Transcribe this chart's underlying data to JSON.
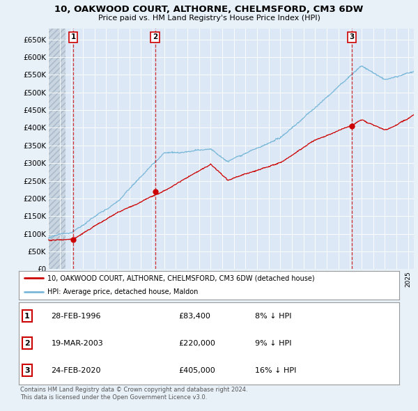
{
  "title1": "10, OAKWOOD COURT, ALTHORNE, CHELMSFORD, CM3 6DW",
  "title2": "Price paid vs. HM Land Registry's House Price Index (HPI)",
  "ylim": [
    0,
    680000
  ],
  "yticks": [
    0,
    50000,
    100000,
    150000,
    200000,
    250000,
    300000,
    350000,
    400000,
    450000,
    500000,
    550000,
    600000,
    650000
  ],
  "ytick_labels": [
    "£0",
    "£50K",
    "£100K",
    "£150K",
    "£200K",
    "£250K",
    "£300K",
    "£350K",
    "£400K",
    "£450K",
    "£500K",
    "£550K",
    "£600K",
    "£650K"
  ],
  "xlim_start": 1994.0,
  "xlim_end": 2025.5,
  "sale_dates": [
    1996.16,
    2003.22,
    2020.15
  ],
  "sale_prices": [
    83400,
    220000,
    405000
  ],
  "sale_labels": [
    "1",
    "2",
    "3"
  ],
  "sale_date_strs": [
    "28-FEB-1996",
    "19-MAR-2003",
    "24-FEB-2020"
  ],
  "sale_price_strs": [
    "£83,400",
    "£220,000",
    "£405,000"
  ],
  "sale_pct_strs": [
    "8% ↓ HPI",
    "9% ↓ HPI",
    "16% ↓ HPI"
  ],
  "hpi_color": "#7ab8d9",
  "price_color": "#cc0000",
  "background_color": "#e8f0f8",
  "plot_bg_color": "#dce8f5",
  "legend_entry1": "10, OAKWOOD COURT, ALTHORNE, CHELMSFORD, CM3 6DW (detached house)",
  "legend_entry2": "HPI: Average price, detached house, Maldon",
  "footer1": "Contains HM Land Registry data © Crown copyright and database right 2024.",
  "footer2": "This data is licensed under the Open Government Licence v3.0."
}
